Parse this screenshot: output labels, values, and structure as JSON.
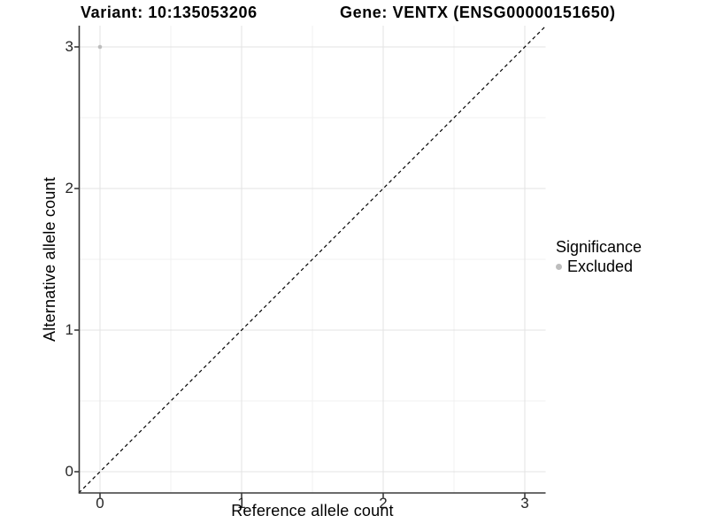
{
  "titles": {
    "variant": "Variant: 10:135053206",
    "gene": "Gene: VENTX (ENSG00000151650)"
  },
  "axes": {
    "x": {
      "label": "Reference allele count",
      "ticks": [
        "0",
        "1",
        "2",
        "3"
      ]
    },
    "y": {
      "label": "Alternative allele count",
      "ticks": [
        "0",
        "1",
        "2",
        "3"
      ]
    }
  },
  "legend": {
    "title": "Significance",
    "items": [
      {
        "label": "Excluded",
        "color": "#bdbdbd"
      }
    ]
  },
  "chart_data": {
    "type": "scatter",
    "title_left": "Variant: 10:135053206",
    "title_right": "Gene: VENTX (ENSG00000151650)",
    "xlabel": "Reference allele count",
    "ylabel": "Alternative allele count",
    "xlim": [
      -0.15,
      3.15
    ],
    "ylim": [
      -0.15,
      3.15
    ],
    "x_ticks": [
      0,
      1,
      2,
      3
    ],
    "y_ticks": [
      0,
      1,
      2,
      3
    ],
    "minor_ticks": [
      0.5,
      1.5,
      2.5
    ],
    "grid": true,
    "legend_position": "right",
    "series": [
      {
        "name": "Excluded",
        "color": "#bdbdbd",
        "points": [
          {
            "x": 0,
            "y": 3
          }
        ]
      }
    ],
    "reference_line": {
      "kind": "identity",
      "slope": 1,
      "intercept": 0,
      "linetype": "dashed",
      "color": "#000000"
    },
    "colors": {
      "background": "#ffffff",
      "major_grid": "#e3e3e3",
      "minor_grid": "#f0f0f0",
      "axis_line": "#3a3a3a",
      "tick_mark": "#3a3a3a",
      "tick_text": "#262626",
      "point": "#bdbdbd"
    }
  }
}
